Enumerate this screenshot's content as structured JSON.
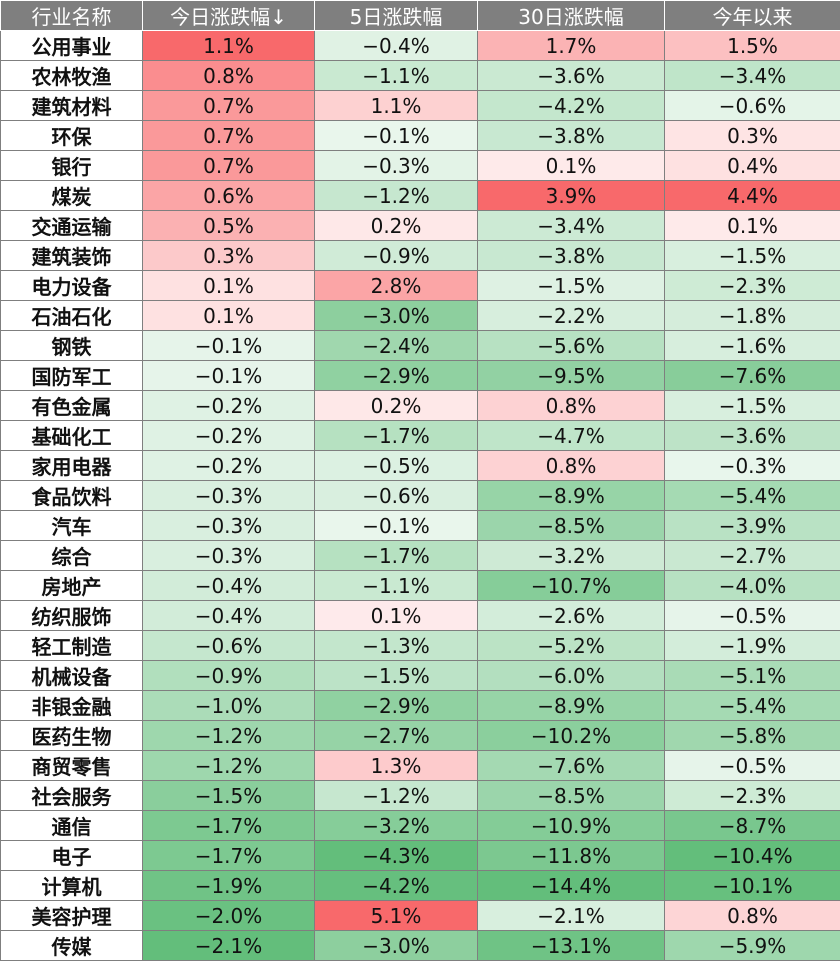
{
  "chart_data": {
    "type": "table",
    "columns": [
      "行业名称",
      "今日涨跌幅↓",
      "5日涨跌幅",
      "30日涨跌幅",
      "今年以来"
    ],
    "rows": [
      {
        "name": "公用事业",
        "values": [
          "1.1%",
          "−0.4%",
          "1.7%",
          "1.5%"
        ],
        "nums": [
          1.1,
          -0.4,
          1.7,
          1.5
        ]
      },
      {
        "name": "农林牧渔",
        "values": [
          "0.8%",
          "−1.1%",
          "−3.6%",
          "−3.4%"
        ],
        "nums": [
          0.8,
          -1.1,
          -3.6,
          -3.4
        ]
      },
      {
        "name": "建筑材料",
        "values": [
          "0.7%",
          "1.1%",
          "−4.2%",
          "−0.6%"
        ],
        "nums": [
          0.7,
          1.1,
          -4.2,
          -0.6
        ]
      },
      {
        "name": "环保",
        "values": [
          "0.7%",
          "−0.1%",
          "−3.8%",
          "0.3%"
        ],
        "nums": [
          0.7,
          -0.1,
          -3.8,
          0.3
        ]
      },
      {
        "name": "银行",
        "values": [
          "0.7%",
          "−0.3%",
          "0.1%",
          "0.4%"
        ],
        "nums": [
          0.7,
          -0.3,
          0.1,
          0.4
        ]
      },
      {
        "name": "煤炭",
        "values": [
          "0.6%",
          "−1.2%",
          "3.9%",
          "4.4%"
        ],
        "nums": [
          0.6,
          -1.2,
          3.9,
          4.4
        ]
      },
      {
        "name": "交通运输",
        "values": [
          "0.5%",
          "0.2%",
          "−3.4%",
          "0.1%"
        ],
        "nums": [
          0.5,
          0.2,
          -3.4,
          0.1
        ]
      },
      {
        "name": "建筑装饰",
        "values": [
          "0.3%",
          "−0.9%",
          "−3.8%",
          "−1.5%"
        ],
        "nums": [
          0.3,
          -0.9,
          -3.8,
          -1.5
        ]
      },
      {
        "name": "电力设备",
        "values": [
          "0.1%",
          "2.8%",
          "−1.5%",
          "−2.3%"
        ],
        "nums": [
          0.1,
          2.8,
          -1.5,
          -2.3
        ]
      },
      {
        "name": "石油石化",
        "values": [
          "0.1%",
          "−3.0%",
          "−2.2%",
          "−1.8%"
        ],
        "nums": [
          0.1,
          -3.0,
          -2.2,
          -1.8
        ]
      },
      {
        "name": "钢铁",
        "values": [
          "−0.1%",
          "−2.4%",
          "−5.6%",
          "−1.6%"
        ],
        "nums": [
          -0.1,
          -2.4,
          -5.6,
          -1.6
        ]
      },
      {
        "name": "国防军工",
        "values": [
          "−0.1%",
          "−2.9%",
          "−9.5%",
          "−7.6%"
        ],
        "nums": [
          -0.1,
          -2.9,
          -9.5,
          -7.6
        ]
      },
      {
        "name": "有色金属",
        "values": [
          "−0.2%",
          "0.2%",
          "0.8%",
          "−1.5%"
        ],
        "nums": [
          -0.2,
          0.2,
          0.8,
          -1.5
        ]
      },
      {
        "name": "基础化工",
        "values": [
          "−0.2%",
          "−1.7%",
          "−4.7%",
          "−3.6%"
        ],
        "nums": [
          -0.2,
          -1.7,
          -4.7,
          -3.6
        ]
      },
      {
        "name": "家用电器",
        "values": [
          "−0.2%",
          "−0.5%",
          "0.8%",
          "−0.3%"
        ],
        "nums": [
          -0.2,
          -0.5,
          0.8,
          -0.3
        ]
      },
      {
        "name": "食品饮料",
        "values": [
          "−0.3%",
          "−0.6%",
          "−8.9%",
          "−5.4%"
        ],
        "nums": [
          -0.3,
          -0.6,
          -8.9,
          -5.4
        ]
      },
      {
        "name": "汽车",
        "values": [
          "−0.3%",
          "−0.1%",
          "−8.5%",
          "−3.9%"
        ],
        "nums": [
          -0.3,
          -0.1,
          -8.5,
          -3.9
        ]
      },
      {
        "name": "综合",
        "values": [
          "−0.3%",
          "−1.7%",
          "−3.2%",
          "−2.7%"
        ],
        "nums": [
          -0.3,
          -1.7,
          -3.2,
          -2.7
        ]
      },
      {
        "name": "房地产",
        "values": [
          "−0.4%",
          "−1.1%",
          "−10.7%",
          "−4.0%"
        ],
        "nums": [
          -0.4,
          -1.1,
          -10.7,
          -4.0
        ]
      },
      {
        "name": "纺织服饰",
        "values": [
          "−0.4%",
          "0.1%",
          "−2.6%",
          "−0.5%"
        ],
        "nums": [
          -0.4,
          0.1,
          -2.6,
          -0.5
        ]
      },
      {
        "name": "轻工制造",
        "values": [
          "−0.6%",
          "−1.3%",
          "−5.2%",
          "−1.9%"
        ],
        "nums": [
          -0.6,
          -1.3,
          -5.2,
          -1.9
        ]
      },
      {
        "name": "机械设备",
        "values": [
          "−0.9%",
          "−1.5%",
          "−6.0%",
          "−5.1%"
        ],
        "nums": [
          -0.9,
          -1.5,
          -6.0,
          -5.1
        ]
      },
      {
        "name": "非银金融",
        "values": [
          "−1.0%",
          "−2.9%",
          "−8.9%",
          "−5.4%"
        ],
        "nums": [
          -1.0,
          -2.9,
          -8.9,
          -5.4
        ]
      },
      {
        "name": "医药生物",
        "values": [
          "−1.2%",
          "−2.7%",
          "−10.2%",
          "−5.8%"
        ],
        "nums": [
          -1.2,
          -2.7,
          -10.2,
          -5.8
        ]
      },
      {
        "name": "商贸零售",
        "values": [
          "−1.2%",
          "1.3%",
          "−7.6%",
          "−0.5%"
        ],
        "nums": [
          -1.2,
          1.3,
          -7.6,
          -0.5
        ]
      },
      {
        "name": "社会服务",
        "values": [
          "−1.5%",
          "−1.2%",
          "−8.5%",
          "−2.3%"
        ],
        "nums": [
          -1.5,
          -1.2,
          -8.5,
          -2.3
        ]
      },
      {
        "name": "通信",
        "values": [
          "−1.7%",
          "−3.2%",
          "−10.9%",
          "−8.7%"
        ],
        "nums": [
          -1.7,
          -3.2,
          -10.9,
          -8.7
        ]
      },
      {
        "name": "电子",
        "values": [
          "−1.7%",
          "−4.3%",
          "−11.8%",
          "−10.4%"
        ],
        "nums": [
          -1.7,
          -4.3,
          -11.8,
          -10.4
        ]
      },
      {
        "name": "计算机",
        "values": [
          "−1.9%",
          "−4.2%",
          "−14.4%",
          "−10.1%"
        ],
        "nums": [
          -1.9,
          -4.2,
          -14.4,
          -10.1
        ]
      },
      {
        "name": "美容护理",
        "values": [
          "−2.0%",
          "5.1%",
          "−2.1%",
          "0.8%"
        ],
        "nums": [
          -2.0,
          5.1,
          -2.1,
          0.8
        ]
      },
      {
        "name": "传媒",
        "values": [
          "−2.1%",
          "−3.0%",
          "−13.1%",
          "−5.9%"
        ],
        "nums": [
          -2.1,
          -3.0,
          -13.1,
          -5.9
        ]
      }
    ],
    "colors": {
      "header_bg": "#7f7f7f",
      "positive_max": "#f8696b",
      "negative_max": "#63be7b",
      "neutral": "#ffffff"
    }
  }
}
